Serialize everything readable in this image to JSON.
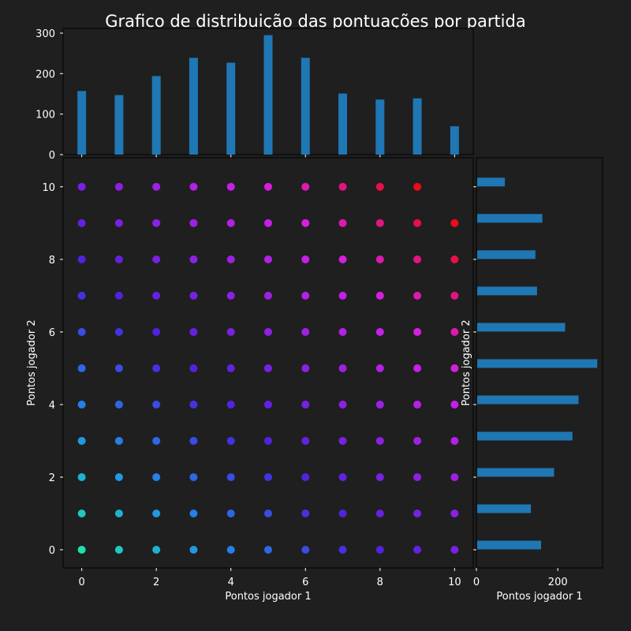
{
  "title": "Grafico de distribuição das pontuações por partida",
  "colors": {
    "background": "#1f1f1f",
    "axes_face": "#1f1f1f",
    "spine": "#000000",
    "text": "#ffffff",
    "bar": "#1f77b4",
    "cmap_low": "#1fe0b0",
    "cmap_mid1": "#1f8fe8",
    "cmap_mid2": "#4a22e0",
    "cmap_mid3": "#d61fe8",
    "cmap_high": "#ee0a1a"
  },
  "chart_data": [
    {
      "id": "scatter",
      "type": "scatter",
      "xlabel": "Pontos jogador 1",
      "ylabel": "Pontos jogador 2",
      "xlim": [
        -0.5,
        10.5
      ],
      "ylim": [
        -0.5,
        10.8
      ],
      "xticks": [
        0,
        2,
        4,
        6,
        8,
        10
      ],
      "yticks": [
        0,
        2,
        4,
        6,
        8,
        10
      ],
      "color_by": "x + y",
      "points_note": "all integer pairs (x,y) with 0<=x<=10, 0<=y<=10 except (10,10)",
      "x_range": [
        0,
        10
      ],
      "y_range": [
        0,
        10
      ],
      "missing_points": [
        [
          10,
          10
        ]
      ]
    },
    {
      "id": "top-histogram",
      "type": "bar",
      "categories": [
        0,
        1,
        2,
        3,
        4,
        5,
        6,
        7,
        8,
        9,
        10
      ],
      "values": [
        157,
        147,
        194,
        239,
        227,
        295,
        239,
        151,
        136,
        139,
        70
      ],
      "ylim": [
        0,
        300
      ],
      "yticks": [
        0,
        100,
        200,
        300
      ]
    },
    {
      "id": "right-histogram",
      "type": "bar",
      "orientation": "horizontal",
      "categories": [
        0,
        1,
        2,
        3,
        4,
        5,
        6,
        7,
        8,
        9,
        10
      ],
      "values": [
        157,
        132,
        189,
        234,
        249,
        295,
        216,
        147,
        143,
        160,
        68
      ],
      "xlabel": "Pontos jogador 1",
      "ylabel": "Pontos jogador 2",
      "xlim": [
        0,
        310
      ],
      "xticks": [
        0,
        200
      ]
    }
  ]
}
